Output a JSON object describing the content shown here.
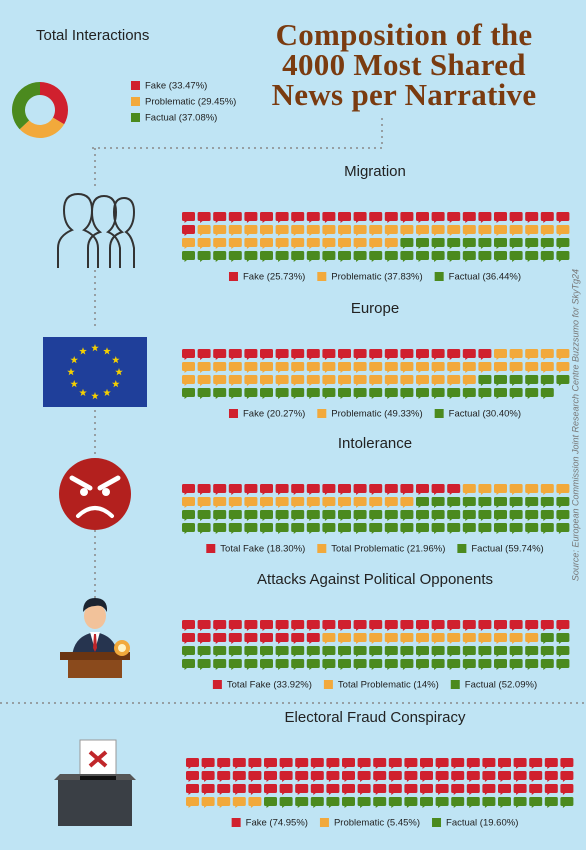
{
  "title": "Composition of the 4000 Most Shared News per Narrative",
  "source": "Source: European Commission Joint Research Centre Buzzsumo for SkyTg24",
  "chart_data": [
    {
      "type": "pie",
      "title": "Total Interactions",
      "donut": true,
      "labels": [
        "Fake (33.47%)",
        "Problematic (29.45%)",
        "Factual (37.08%)"
      ],
      "values": [
        33.47,
        29.45,
        37.08
      ],
      "colors": [
        "#d0202e",
        "#f2a93b",
        "#4b8a1e"
      ]
    },
    {
      "type": "waffle",
      "title": "Migration",
      "labels": [
        "Fake (25.73%)",
        "Problematic (37.83%)",
        "Factual (36.44%)"
      ],
      "values": [
        25.73,
        37.83,
        36.44
      ],
      "colors": [
        "#d0202e",
        "#f2a93b",
        "#4b8a1e"
      ]
    },
    {
      "type": "waffle",
      "title": "Europe",
      "labels": [
        "Fake (20.27%)",
        "Problematic (49.33%)",
        "Factual (30.40%)"
      ],
      "values": [
        20.27,
        49.33,
        30.4
      ],
      "colors": [
        "#d0202e",
        "#f2a93b",
        "#4b8a1e"
      ]
    },
    {
      "type": "waffle",
      "title": "Intolerance",
      "labels": [
        "Total Fake (18.30%)",
        "Total Problematic (21.96%)",
        "Factual (59.74%)"
      ],
      "values": [
        18.3,
        21.96,
        59.74
      ],
      "colors": [
        "#d0202e",
        "#f2a93b",
        "#4b8a1e"
      ]
    },
    {
      "type": "waffle",
      "title": "Attacks Against Political Opponents",
      "labels": [
        "Total Fake (33.92%)",
        "Total Problematic (14%)",
        "Factual (52.09%)"
      ],
      "values": [
        33.92,
        14,
        52.09
      ],
      "colors": [
        "#d0202e",
        "#f2a93b",
        "#4b8a1e"
      ]
    },
    {
      "type": "waffle",
      "title": "Electoral Fraud Conspiracy",
      "labels": [
        "Fake (74.95%)",
        "Problematic (5.45%)",
        "Factual (19.60%)"
      ],
      "values": [
        74.95,
        5.45,
        19.6
      ],
      "colors": [
        "#d0202e",
        "#f2a93b",
        "#4b8a1e"
      ]
    }
  ]
}
